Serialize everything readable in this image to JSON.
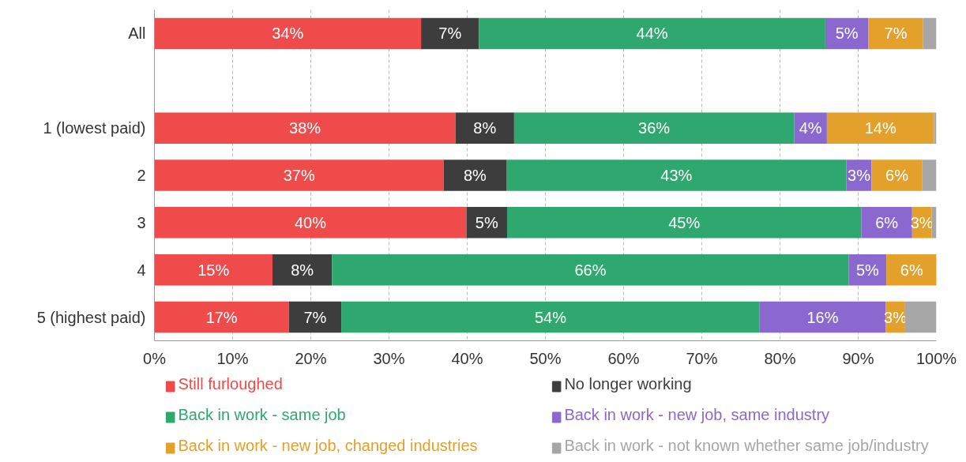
{
  "chart_data": {
    "type": "bar",
    "orientation": "horizontal",
    "stacked": true,
    "categories": [
      "All",
      null,
      "1 (lowest paid)",
      "2",
      "3",
      "4",
      "5 (highest paid)"
    ],
    "series": [
      {
        "name": "Still furloughed",
        "color": "#ef4b4b",
        "values": [
          34.1,
          null,
          38.5,
          37.0,
          39.9,
          15.1,
          17.2
        ],
        "value_labels": [
          "34%",
          null,
          "38%",
          "37%",
          "40%",
          "15%",
          "17%"
        ]
      },
      {
        "name": "No longer working",
        "color": "#3d3d3d",
        "values": [
          7.4,
          null,
          7.5,
          8.0,
          5.2,
          7.6,
          6.7
        ],
        "value_labels": [
          "7%",
          null,
          "8%",
          "8%",
          "5%",
          "8%",
          "7%"
        ]
      },
      {
        "name": "Back in work - same job",
        "color": "#2ea86e",
        "values": [
          44.3,
          null,
          35.8,
          43.5,
          45.3,
          66.1,
          53.5
        ],
        "value_labels": [
          "44%",
          null,
          "36%",
          "43%",
          "45%",
          "66%",
          "54%"
        ]
      },
      {
        "name": "Back in work - new job, same industry",
        "color": "#8a68d0",
        "values": [
          5.5,
          null,
          4.2,
          3.2,
          6.5,
          4.8,
          16.1
        ],
        "value_labels": [
          "5%",
          null,
          "4%",
          "3%",
          "6%",
          "5%",
          "16%"
        ]
      },
      {
        "name": "Back in work - new job, changed industries",
        "color": "#e3a02b",
        "values": [
          7.0,
          null,
          13.7,
          6.5,
          2.5,
          6.5,
          2.5
        ],
        "value_labels": [
          "7%",
          null,
          "14%",
          "6%",
          "3%",
          "6%",
          "3%"
        ]
      },
      {
        "name": "Back in work - not known whether same job/industry",
        "color": "#a6a6a6",
        "values": [
          1.7,
          null,
          0.4,
          1.8,
          0.7,
          0,
          4.0
        ],
        "value_labels": [
          null,
          null,
          null,
          null,
          null,
          null,
          null
        ]
      }
    ],
    "xlim": [
      0,
      100
    ],
    "xticks": [
      {
        "value": 0,
        "label": "0%"
      },
      {
        "value": 10,
        "label": "10%"
      },
      {
        "value": 20,
        "label": "20%"
      },
      {
        "value": 30,
        "label": "30%"
      },
      {
        "value": 40,
        "label": "40%"
      },
      {
        "value": 50,
        "label": "50%"
      },
      {
        "value": 60,
        "label": "60%"
      },
      {
        "value": 70,
        "label": "70%"
      },
      {
        "value": 80,
        "label": "80%"
      },
      {
        "value": 90,
        "label": "90%"
      },
      {
        "value": 100,
        "label": "100%"
      }
    ],
    "grid": "x",
    "legend": "bottom"
  }
}
